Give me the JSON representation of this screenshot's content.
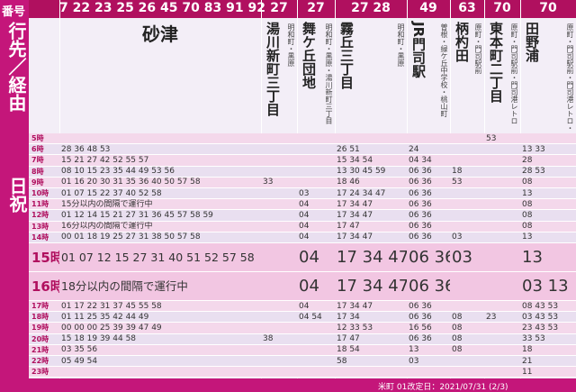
{
  "header": {
    "number_label": "番号",
    "dest_label": "行先／経由",
    "day_label": "日祝"
  },
  "columns": [
    {
      "routes": "7 22 23 25 26 45 70 83 91 92",
      "destination": "砂津"
    },
    {
      "routes": "27",
      "destination": "湯川新町三丁目",
      "via": [
        "明和町・黒原"
      ]
    },
    {
      "routes": "27",
      "destination": "舞ケ丘団地",
      "via": [
        "明和町・黒原・湯川新町三丁目"
      ]
    },
    {
      "routes": "27 28",
      "destination": "霧丘三丁目",
      "via": [
        "明和町・黒原"
      ]
    },
    {
      "routes": "49",
      "destination": "JR門司駅",
      "via": [
        "曽根・緑ケ丘中学校・桃山町"
      ]
    },
    {
      "routes": "63",
      "destination": "柄杓田",
      "via": [
        "原町・門司駅前"
      ]
    },
    {
      "routes": "70",
      "destination": "東本町二丁目",
      "via": [
        "原町・門司駅前・門司港レトロ"
      ]
    },
    {
      "routes": "70",
      "destination": "田野浦",
      "via": [
        "原町・門司駅前・門司港レトロ・海岸"
      ]
    }
  ],
  "hours": [
    {
      "hour": "5時",
      "times": [
        null,
        null,
        null,
        null,
        null,
        null,
        "53",
        null
      ]
    },
    {
      "hour": "6時",
      "times": [
        "28 36 48 53",
        null,
        null,
        "26 51",
        "24",
        null,
        null,
        "13 33"
      ]
    },
    {
      "hour": "7時",
      "times": [
        "15 21 27 42 52 55 57",
        null,
        null,
        "15 34 54",
        "04 34",
        null,
        null,
        "28"
      ]
    },
    {
      "hour": "8時",
      "times": [
        "08 10 15 23 35 44 49 53 56",
        null,
        null,
        "13 30 45 59",
        "06 36",
        "18",
        null,
        "28 53"
      ]
    },
    {
      "hour": "9時",
      "times": [
        "01 16 20 30 31 35 36 40 50 57 58",
        "33",
        null,
        "18 46",
        "06 36",
        "53",
        null,
        "08"
      ]
    },
    {
      "hour": "10時",
      "times": [
        "01 07 15 22 37 40 52 58",
        null,
        "03",
        "17 24 34 47",
        "06 36",
        null,
        null,
        "13"
      ]
    },
    {
      "hour": "11時",
      "times": [
        "15分以内の間隔で運行中",
        null,
        "04",
        "17 34 47",
        "06 36",
        null,
        null,
        "08"
      ]
    },
    {
      "hour": "12時",
      "times": [
        "01 12 14 15 21 27 31 36 45 57 58 59",
        null,
        "04",
        "17 34 47",
        "06 36",
        null,
        null,
        "08"
      ]
    },
    {
      "hour": "13時",
      "times": [
        "16分以内の間隔で運行中",
        null,
        "04",
        "17 47",
        "06 36",
        null,
        null,
        "08"
      ]
    },
    {
      "hour": "14時",
      "times": [
        "00 01 18 19 25 27 31 38 50 57 58",
        null,
        "04",
        "17 34 47",
        "06 36",
        "03",
        null,
        "13"
      ]
    },
    {
      "hour": "15時",
      "large": true,
      "times": [
        "01 07 12 15 27 31 40 51 52 57 58",
        null,
        "04",
        "17 34 47",
        "06 36",
        "03",
        null,
        "13"
      ]
    },
    {
      "hour": "16時",
      "large": true,
      "times": [
        "18分以内の間隔で運行中",
        null,
        "04",
        "17 34 47",
        "06 36",
        null,
        null,
        "03 13"
      ]
    },
    {
      "hour": "17時",
      "times": [
        "01 17 22 31 37 45 55 58",
        null,
        "04",
        "17 34 47",
        "06 36",
        null,
        null,
        "08 43 53"
      ]
    },
    {
      "hour": "18時",
      "times": [
        "01 11 25 35 42 44 49",
        null,
        "04 54",
        "17 34",
        "06 36",
        "08",
        "23",
        "03 43 53"
      ]
    },
    {
      "hour": "19時",
      "times": [
        "00 00 00 25 39 39 47 49",
        null,
        null,
        "12 33 53",
        "16 56",
        "08",
        null,
        "23 43 53"
      ]
    },
    {
      "hour": "20時",
      "times": [
        "15 18 19 39 44 58",
        "38",
        null,
        "17 47",
        "06 36",
        "08",
        null,
        "33 53"
      ]
    },
    {
      "hour": "21時",
      "times": [
        "03 35 56",
        null,
        null,
        "18 54",
        "13",
        "08",
        null,
        "18"
      ]
    },
    {
      "hour": "22時",
      "times": [
        "05 49 54",
        null,
        null,
        "58",
        "03",
        null,
        null,
        "21"
      ]
    },
    {
      "hour": "23時",
      "times": [
        null,
        null,
        null,
        null,
        null,
        null,
        null,
        "11"
      ]
    }
  ],
  "footer": "米町 01改定日：2021/07/31 (2/3)"
}
